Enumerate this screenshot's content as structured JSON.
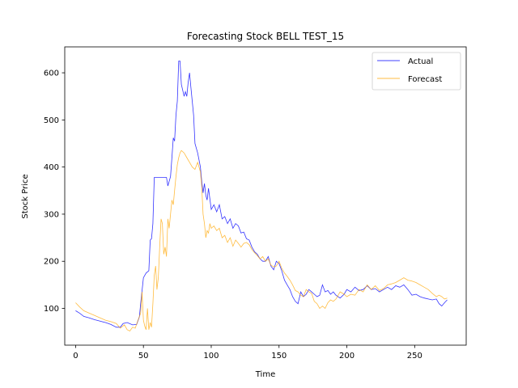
{
  "chart_data": {
    "type": "line",
    "title": "Forecasting Stock BELL TEST_15",
    "xlabel": "Time",
    "ylabel": "Stock Price",
    "xlim": [
      -8,
      288
    ],
    "ylim": [
      22,
      655
    ],
    "xticks": [
      0,
      50,
      100,
      150,
      200,
      250
    ],
    "yticks": [
      100,
      200,
      300,
      400,
      500,
      600
    ],
    "grid": false,
    "legend_position": "top-right",
    "series": [
      {
        "name": "Actual",
        "color": "#0000ff",
        "points": [
          [
            0,
            95
          ],
          [
            3,
            90
          ],
          [
            6,
            83
          ],
          [
            10,
            80
          ],
          [
            14,
            76
          ],
          [
            18,
            73
          ],
          [
            22,
            70
          ],
          [
            26,
            66
          ],
          [
            30,
            60
          ],
          [
            33,
            60
          ],
          [
            35,
            68
          ],
          [
            38,
            70
          ],
          [
            42,
            65
          ],
          [
            45,
            66
          ],
          [
            47,
            82
          ],
          [
            48,
            110
          ],
          [
            50,
            165
          ],
          [
            52,
            175
          ],
          [
            54,
            180
          ],
          [
            55,
            245
          ],
          [
            56,
            248
          ],
          [
            57,
            280
          ],
          [
            58,
            378
          ],
          [
            60,
            378
          ],
          [
            63,
            378
          ],
          [
            65,
            378
          ],
          [
            67,
            378
          ],
          [
            68,
            360
          ],
          [
            70,
            380
          ],
          [
            71,
            420
          ],
          [
            72,
            462
          ],
          [
            73,
            455
          ],
          [
            74,
            510
          ],
          [
            75,
            540
          ],
          [
            76,
            625
          ],
          [
            77,
            625
          ],
          [
            78,
            575
          ],
          [
            80,
            550
          ],
          [
            81,
            560
          ],
          [
            82,
            550
          ],
          [
            83,
            580
          ],
          [
            84,
            600
          ],
          [
            85,
            570
          ],
          [
            87,
            510
          ],
          [
            88,
            450
          ],
          [
            90,
            430
          ],
          [
            92,
            400
          ],
          [
            93,
            370
          ],
          [
            94,
            345
          ],
          [
            95,
            365
          ],
          [
            96,
            340
          ],
          [
            97,
            330
          ],
          [
            98,
            355
          ],
          [
            100,
            310
          ],
          [
            102,
            320
          ],
          [
            104,
            305
          ],
          [
            106,
            320
          ],
          [
            108,
            290
          ],
          [
            110,
            295
          ],
          [
            112,
            280
          ],
          [
            114,
            290
          ],
          [
            116,
            270
          ],
          [
            118,
            280
          ],
          [
            120,
            275
          ],
          [
            122,
            260
          ],
          [
            124,
            262
          ],
          [
            126,
            248
          ],
          [
            128,
            245
          ],
          [
            130,
            230
          ],
          [
            132,
            220
          ],
          [
            134,
            215
          ],
          [
            136,
            205
          ],
          [
            138,
            200
          ],
          [
            140,
            200
          ],
          [
            142,
            210
          ],
          [
            144,
            190
          ],
          [
            146,
            182
          ],
          [
            148,
            200
          ],
          [
            150,
            195
          ],
          [
            152,
            180
          ],
          [
            154,
            160
          ],
          [
            156,
            150
          ],
          [
            158,
            140
          ],
          [
            160,
            125
          ],
          [
            162,
            115
          ],
          [
            164,
            110
          ],
          [
            166,
            135
          ],
          [
            168,
            125
          ],
          [
            170,
            130
          ],
          [
            172,
            140
          ],
          [
            174,
            135
          ],
          [
            176,
            130
          ],
          [
            178,
            125
          ],
          [
            180,
            128
          ],
          [
            182,
            150
          ],
          [
            184,
            135
          ],
          [
            186,
            138
          ],
          [
            188,
            130
          ],
          [
            190,
            135
          ],
          [
            192,
            128
          ],
          [
            195,
            122
          ],
          [
            198,
            130
          ],
          [
            200,
            140
          ],
          [
            203,
            135
          ],
          [
            206,
            145
          ],
          [
            209,
            138
          ],
          [
            212,
            140
          ],
          [
            215,
            148
          ],
          [
            218,
            140
          ],
          [
            221,
            142
          ],
          [
            224,
            135
          ],
          [
            227,
            140
          ],
          [
            230,
            145
          ],
          [
            233,
            140
          ],
          [
            236,
            148
          ],
          [
            239,
            145
          ],
          [
            242,
            150
          ],
          [
            245,
            140
          ],
          [
            248,
            128
          ],
          [
            251,
            130
          ],
          [
            254,
            125
          ],
          [
            257,
            122
          ],
          [
            260,
            120
          ],
          [
            263,
            118
          ],
          [
            266,
            120
          ],
          [
            268,
            110
          ],
          [
            270,
            105
          ],
          [
            272,
            112
          ],
          [
            274,
            118
          ]
        ]
      },
      {
        "name": "Forecast",
        "color": "#ffa500",
        "points": [
          [
            0,
            112
          ],
          [
            3,
            103
          ],
          [
            6,
            95
          ],
          [
            10,
            90
          ],
          [
            14,
            85
          ],
          [
            18,
            80
          ],
          [
            22,
            75
          ],
          [
            26,
            72
          ],
          [
            30,
            68
          ],
          [
            33,
            58
          ],
          [
            36,
            65
          ],
          [
            38,
            55
          ],
          [
            40,
            52
          ],
          [
            42,
            60
          ],
          [
            44,
            58
          ],
          [
            46,
            75
          ],
          [
            48,
            90
          ],
          [
            49,
            135
          ],
          [
            50,
            75
          ],
          [
            51,
            62
          ],
          [
            52,
            55
          ],
          [
            53,
            100
          ],
          [
            54,
            55
          ],
          [
            55,
            70
          ],
          [
            56,
            60
          ],
          [
            57,
            110
          ],
          [
            58,
            170
          ],
          [
            59,
            190
          ],
          [
            60,
            140
          ],
          [
            61,
            165
          ],
          [
            62,
            230
          ],
          [
            63,
            290
          ],
          [
            64,
            280
          ],
          [
            65,
            215
          ],
          [
            66,
            230
          ],
          [
            67,
            210
          ],
          [
            68,
            290
          ],
          [
            69,
            270
          ],
          [
            70,
            300
          ],
          [
            71,
            330
          ],
          [
            72,
            320
          ],
          [
            73,
            350
          ],
          [
            74,
            380
          ],
          [
            75,
            405
          ],
          [
            76,
            420
          ],
          [
            77,
            430
          ],
          [
            78,
            435
          ],
          [
            80,
            430
          ],
          [
            82,
            420
          ],
          [
            84,
            410
          ],
          [
            86,
            400
          ],
          [
            88,
            395
          ],
          [
            90,
            410
          ],
          [
            92,
            390
          ],
          [
            93,
            360
          ],
          [
            94,
            300
          ],
          [
            95,
            280
          ],
          [
            96,
            250
          ],
          [
            97,
            265
          ],
          [
            98,
            260
          ],
          [
            99,
            280
          ],
          [
            100,
            270
          ],
          [
            102,
            275
          ],
          [
            104,
            265
          ],
          [
            106,
            270
          ],
          [
            108,
            250
          ],
          [
            110,
            255
          ],
          [
            112,
            240
          ],
          [
            114,
            250
          ],
          [
            116,
            232
          ],
          [
            118,
            245
          ],
          [
            120,
            238
          ],
          [
            122,
            230
          ],
          [
            124,
            238
          ],
          [
            126,
            240
          ],
          [
            128,
            235
          ],
          [
            130,
            225
          ],
          [
            132,
            218
          ],
          [
            134,
            212
          ],
          [
            136,
            205
          ],
          [
            138,
            210
          ],
          [
            140,
            200
          ],
          [
            142,
            205
          ],
          [
            144,
            192
          ],
          [
            146,
            188
          ],
          [
            148,
            190
          ],
          [
            150,
            200
          ],
          [
            152,
            185
          ],
          [
            154,
            175
          ],
          [
            156,
            168
          ],
          [
            158,
            160
          ],
          [
            160,
            150
          ],
          [
            162,
            138
          ],
          [
            164,
            135
          ],
          [
            166,
            128
          ],
          [
            168,
            125
          ],
          [
            170,
            140
          ],
          [
            172,
            135
          ],
          [
            174,
            132
          ],
          [
            176,
            115
          ],
          [
            178,
            110
          ],
          [
            180,
            100
          ],
          [
            182,
            105
          ],
          [
            184,
            100
          ],
          [
            186,
            112
          ],
          [
            188,
            118
          ],
          [
            190,
            115
          ],
          [
            192,
            120
          ],
          [
            195,
            135
          ],
          [
            198,
            130
          ],
          [
            200,
            125
          ],
          [
            203,
            130
          ],
          [
            206,
            128
          ],
          [
            209,
            140
          ],
          [
            212,
            135
          ],
          [
            215,
            150
          ],
          [
            218,
            140
          ],
          [
            221,
            148
          ],
          [
            224,
            138
          ],
          [
            227,
            142
          ],
          [
            230,
            150
          ],
          [
            233,
            152
          ],
          [
            236,
            155
          ],
          [
            239,
            160
          ],
          [
            242,
            165
          ],
          [
            245,
            160
          ],
          [
            248,
            158
          ],
          [
            251,
            155
          ],
          [
            254,
            150
          ],
          [
            257,
            145
          ],
          [
            260,
            140
          ],
          [
            263,
            132
          ],
          [
            266,
            125
          ],
          [
            268,
            128
          ],
          [
            270,
            125
          ],
          [
            272,
            120
          ],
          [
            274,
            122
          ]
        ]
      }
    ]
  }
}
